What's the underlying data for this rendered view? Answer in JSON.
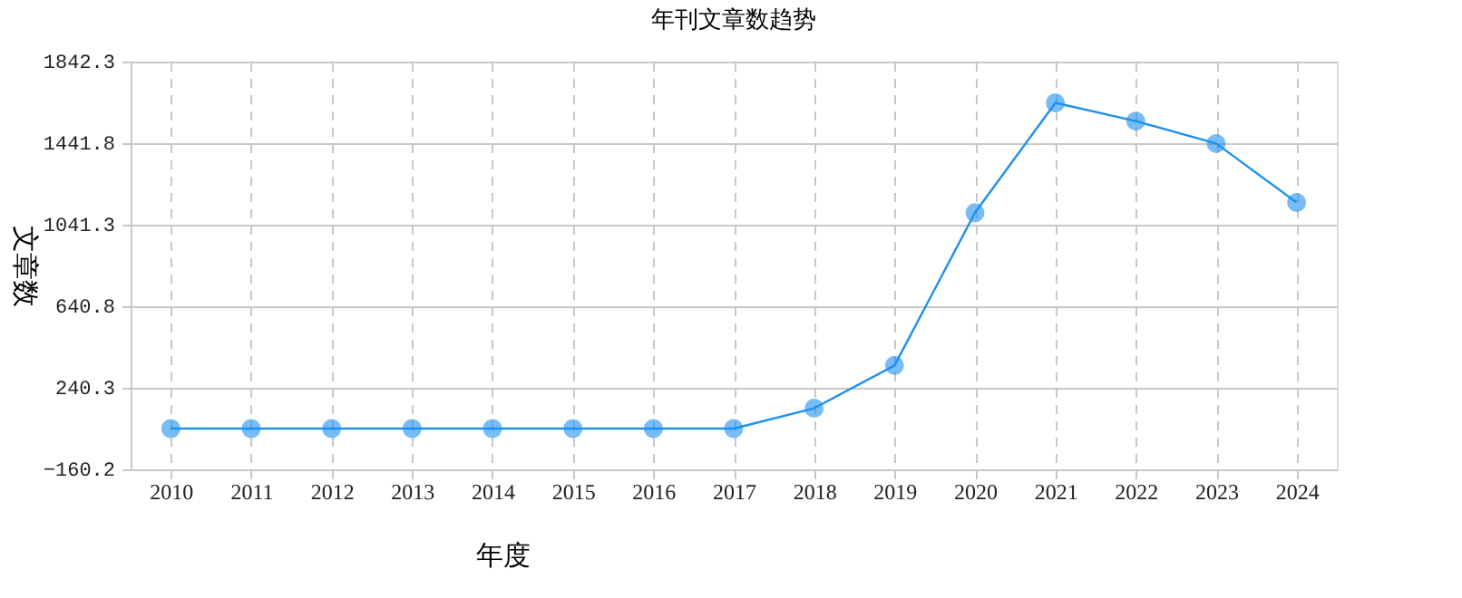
{
  "chart_data": {
    "type": "line",
    "title": "年刊文章数趋势",
    "xlabel": "年度",
    "ylabel": "文章数",
    "categories": [
      "2010",
      "2011",
      "2012",
      "2013",
      "2014",
      "2015",
      "2016",
      "2017",
      "2018",
      "2019",
      "2020",
      "2021",
      "2022",
      "2023",
      "2024"
    ],
    "series": [
      {
        "color": "#1e90f0",
        "values": [
          40,
          40,
          40,
          40,
          40,
          40,
          40,
          40,
          140,
          350,
          1100,
          1640,
          1550,
          1440,
          1150
        ]
      }
    ],
    "ylim": [
      -160.2,
      1842.3
    ],
    "yticks": [
      -160.2,
      240.3,
      640.8,
      1041.3,
      1441.8,
      1842.3
    ],
    "grid": true,
    "marker": "circle",
    "line_style": "solid"
  }
}
